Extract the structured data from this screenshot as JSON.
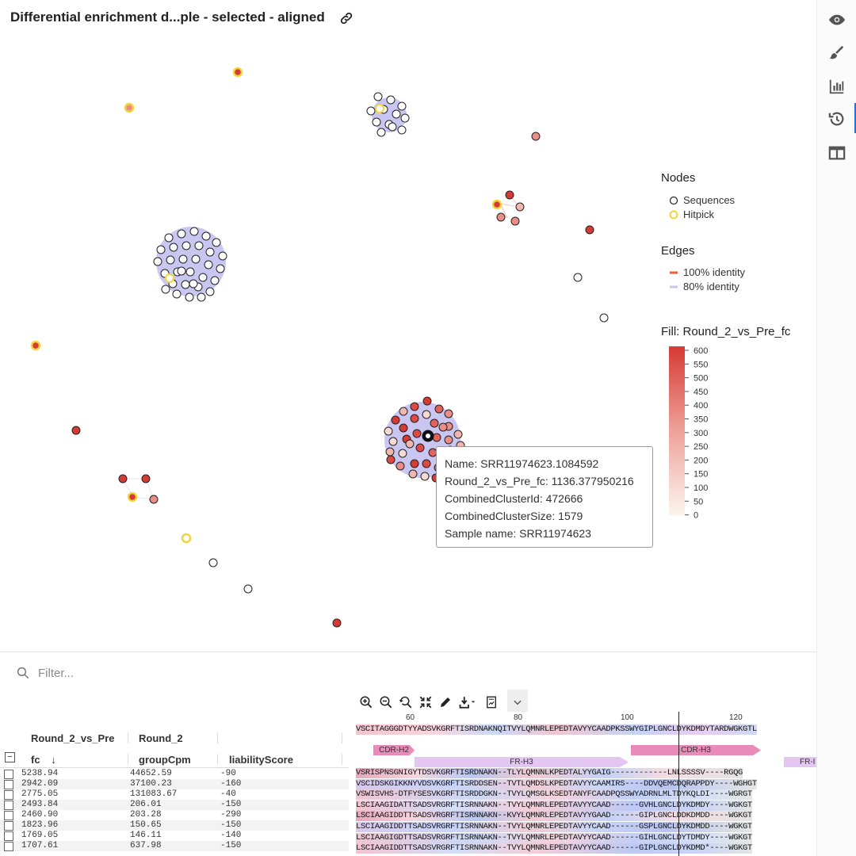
{
  "header": {
    "title": "Differential enrichment d...ple - selected - aligned",
    "link_icon": "link-icon"
  },
  "colors": {
    "accent": "#1e73d8",
    "hitpick": "#f2d53c",
    "edge_100": "#e8613a",
    "edge_80": "#c9c6f2",
    "fill_high": "#d63a35",
    "fill_low": "#fbf6ef"
  },
  "right_rail": {
    "icons": [
      "eye-icon",
      "brush-icon",
      "bar-chart-icon",
      "history-icon",
      "layout-columns-icon"
    ],
    "active_index": 3
  },
  "legend": {
    "nodes_title": "Nodes",
    "node_sequences": "Sequences",
    "node_hitpick": "Hitpick",
    "edges_title": "Edges",
    "edge_100": "100% identity",
    "edge_80": "80% identity",
    "fill_title": "Fill: Round_2_vs_Pre_fc",
    "ticks": [
      "600",
      "550",
      "500",
      "450",
      "400",
      "350",
      "300",
      "250",
      "200",
      "150",
      "100",
      "50",
      "0"
    ]
  },
  "tooltip": {
    "name": "Name: SRR11974623.1084592",
    "fc": "Round_2_vs_Pre_fc: 1136.377950216",
    "cluster_id": "CombinedClusterId: 472666",
    "cluster_size": "CombinedClusterSize: 1579",
    "sample": "Sample name: SRR11974623"
  },
  "filter": {
    "placeholder": "Filter..."
  },
  "toolbar": {
    "icons": [
      "zoom-in-icon",
      "zoom-out-icon",
      "zoom-reset-icon",
      "fit-icon",
      "pencil-icon",
      "download-icon",
      "report-icon",
      "chevron-down-icon"
    ]
  },
  "table": {
    "group_header_1": "Round_2_vs_Pre",
    "group_header_2": "Round_2",
    "col_fc": "fc",
    "sort_indicator": "↓",
    "col_cpm": "groupCpm",
    "col_liability": "liabilityScore",
    "collapse_symbol": "−",
    "rows": [
      {
        "fc": "5238.94",
        "cpm": "44652.59",
        "liability": "-90"
      },
      {
        "fc": "2942.09",
        "cpm": "37100.23",
        "liability": "-160"
      },
      {
        "fc": "2775.05",
        "cpm": "131083.67",
        "liability": "-40"
      },
      {
        "fc": "2493.84",
        "cpm": "206.01",
        "liability": "-150"
      },
      {
        "fc": "2460.90",
        "cpm": "203.28",
        "liability": "-290"
      },
      {
        "fc": "1823.96",
        "cpm": "150.65",
        "liability": "-150"
      },
      {
        "fc": "1769.05",
        "cpm": "146.11",
        "liability": "-140"
      },
      {
        "fc": "1707.61",
        "cpm": "637.98",
        "liability": "-150"
      }
    ]
  },
  "msa": {
    "ruler": [
      "60",
      "80",
      "100",
      "120"
    ],
    "consensus": "VSCITAGGGDTYYADSVKGRFTISRDNAKNQITVYLQMNRLEPEDTAVYYCAADPKSSWYGIPLGNCLDYKDMDYTARDWGKGTL",
    "regions": [
      "CDR-H2",
      "FR-H3",
      "CDR-H3",
      "FR-I"
    ],
    "sequences": [
      "VSRISPNSGNIGYTDSVKGRFTISRDNAKN--TLYLQMNNLKPEDTALYYGAIG------------LNLSSSSV----RGQG",
      "VSCIDSKGIKKNYVDSVKGRFTISRDDSEN--TVTLQMDSLKPEDTAVYYCAAMIRS----DDVQEMCDQRAPPDY----WGHGT",
      "VSWISVHS-DTFYSESVKGRFTISRDDGKN--TVYLQMSGLKSEDTANYFCAADPQSSWYADRNLMLTDYKQLDI----WGRGT",
      "LSCIAAGIDATTSADSVRGRFTISRNNAKN--TVYLQMNRLEPEDTAVYYCAAD------GVHLGNCLDYKDMDY----WGKGT",
      "LSCIAAGIDDTTSADSVRGRFTISRNNAKN--KVYLQMNRLEPEDTAVYYGAAD------GIPLGNCLDDKDMDD----WGKGT",
      "LSCIAAGIDDTTSADSVRGRFTISRNNAKN--TVYLQMNRLEPEDTAVYYCAAD------GSPLGNCLDYKDMDD----WGKGT",
      "LSCIAAGIGDTTSADSVRGRFTISRNNAKN--TVYLQMNRLEPEDTAVYYCAAD------GIHLGNCLDYTDMDY----WGKGT",
      "LSCIAAGIDDTTSADSVRGRFTISRNNAKN--TVYLQMNRLEPEDTAVYYCAAD------GIPLGNCLDYKDMD*----WGKGT"
    ]
  }
}
